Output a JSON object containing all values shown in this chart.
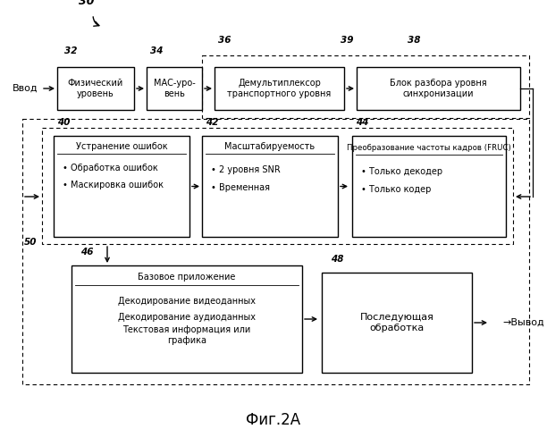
{
  "title": "Фиг.2А",
  "bg_color": "#ffffff",
  "label30": "30",
  "label32": "32",
  "label34": "34",
  "label36": "36",
  "label38": "38",
  "label39": "39",
  "label40": "40",
  "label42": "42",
  "label44": "44",
  "label46": "46",
  "label48": "48",
  "label50": "50",
  "vvod": "Ввод",
  "vyvod": "Вывод",
  "arrow_label": "→",
  "box32_text": "Физический\nуровень",
  "box34_text": "МАС-уро-\nвень",
  "box36_text": "Демультиплексор\nтранспортного уровня",
  "box38_text": "Блок разбора уровня\nсинхронизации",
  "box40_title": "Устранение ошибок",
  "box40_b1": "Обработка ошибок",
  "box40_b2": "Маскировка ошибок",
  "box42_title": "Масштабируемость",
  "box42_b1": "2 уровня SNR",
  "box42_b2": "Временная",
  "box44_title": "Преобразование частоты кадров (FRUC)",
  "box44_b1": "Только декодер",
  "box44_b2": "Только кодер",
  "box46_title": "Базовое приложение",
  "box46_b1": "Декодирование видеоданных",
  "box46_b2": "Декодирование аудиоданных",
  "box46_b3": "Текстовая информация или\nграфика",
  "box48_text": "Последующая\nобработка"
}
